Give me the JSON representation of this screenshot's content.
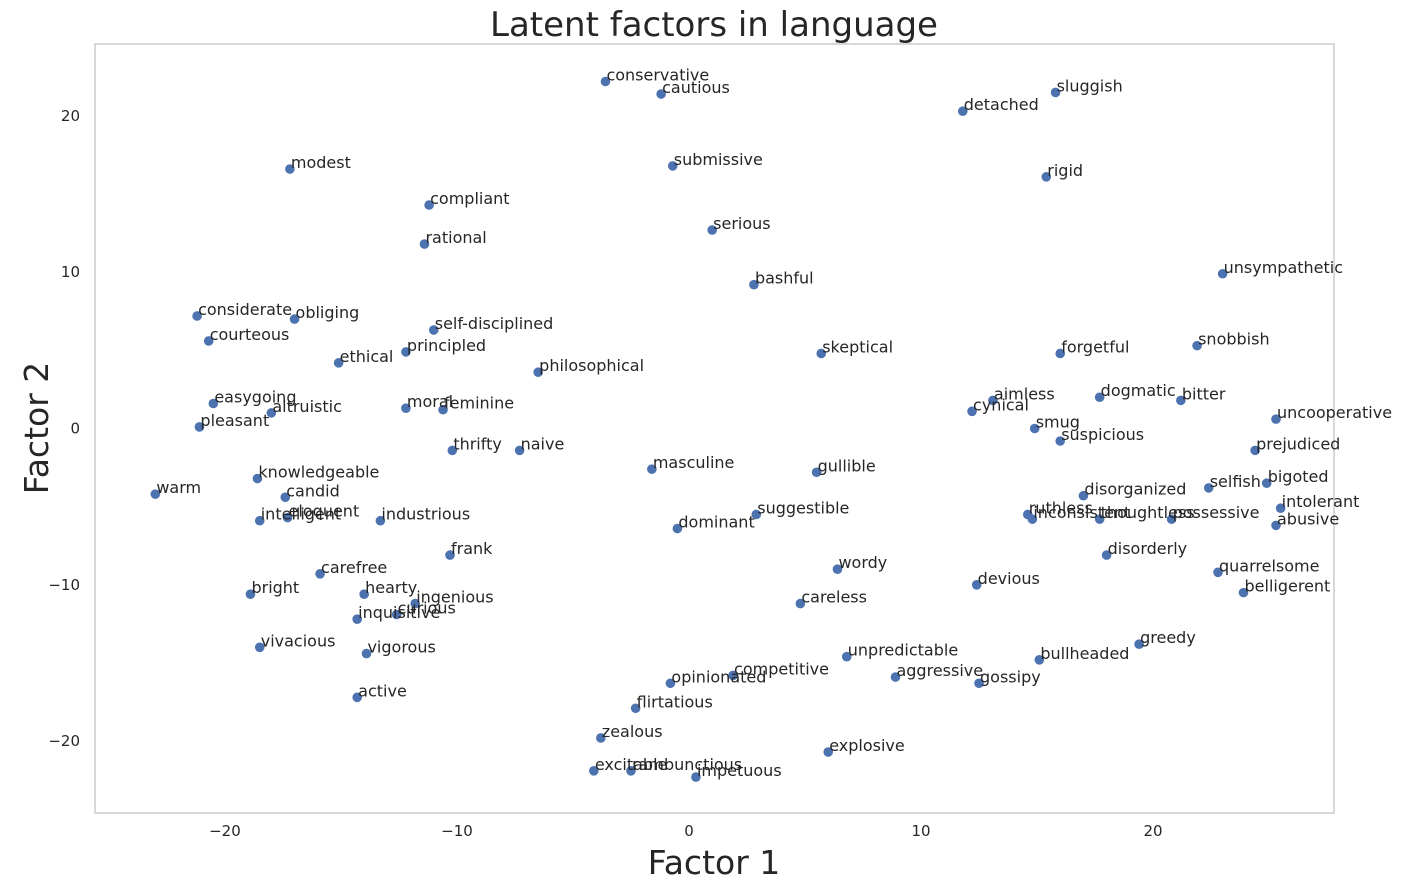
{
  "colors": {
    "point": "#4c72b0",
    "frame": "#cccccc",
    "text": "#262626",
    "background": "#ffffff"
  },
  "chart_data": {
    "type": "scatter",
    "title": "Latent factors in language",
    "xlabel": "Factor 1",
    "ylabel": "Factor 2",
    "xlim": [
      -25.6,
      27.8
    ],
    "ylim": [
      -24.6,
      24.6
    ],
    "xticks": [
      -20,
      -10,
      0,
      10,
      20
    ],
    "yticks": [
      -20,
      -10,
      0,
      10,
      20
    ],
    "xtick_labels": [
      "−20",
      "−10",
      "0",
      "10",
      "20"
    ],
    "ytick_labels": [
      "−20",
      "−10",
      "0",
      "10",
      "20"
    ],
    "grid": false,
    "points": [
      {
        "label": "conservative",
        "x": -3.6,
        "y": 22.2
      },
      {
        "label": "cautious",
        "x": -1.2,
        "y": 21.4
      },
      {
        "label": "sluggish",
        "x": 15.8,
        "y": 21.5
      },
      {
        "label": "detached",
        "x": 11.8,
        "y": 20.3
      },
      {
        "label": "modest",
        "x": -17.2,
        "y": 16.6
      },
      {
        "label": "submissive",
        "x": -0.7,
        "y": 16.8
      },
      {
        "label": "rigid",
        "x": 15.4,
        "y": 16.1
      },
      {
        "label": "compliant",
        "x": -11.2,
        "y": 14.3
      },
      {
        "label": "serious",
        "x": 1.0,
        "y": 12.7
      },
      {
        "label": "rational",
        "x": -11.4,
        "y": 11.8
      },
      {
        "label": "unsympathetic",
        "x": 23.0,
        "y": 9.9
      },
      {
        "label": "bashful",
        "x": 2.8,
        "y": 9.2
      },
      {
        "label": "considerate",
        "x": -21.2,
        "y": 7.2
      },
      {
        "label": "obliging",
        "x": -17.0,
        "y": 7.0
      },
      {
        "label": "self-disciplined",
        "x": -11.0,
        "y": 6.3
      },
      {
        "label": "courteous",
        "x": -20.7,
        "y": 5.6
      },
      {
        "label": "snobbish",
        "x": 21.9,
        "y": 5.3
      },
      {
        "label": "principled",
        "x": -12.2,
        "y": 4.9
      },
      {
        "label": "skeptical",
        "x": 5.7,
        "y": 4.8
      },
      {
        "label": "forgetful",
        "x": 16.0,
        "y": 4.8
      },
      {
        "label": "ethical",
        "x": -15.1,
        "y": 4.2
      },
      {
        "label": "philosophical",
        "x": -6.5,
        "y": 3.6
      },
      {
        "label": "dogmatic",
        "x": 17.7,
        "y": 2.0
      },
      {
        "label": "aimless",
        "x": 13.1,
        "y": 1.8
      },
      {
        "label": "bitter",
        "x": 21.2,
        "y": 1.8
      },
      {
        "label": "easygoing",
        "x": -20.5,
        "y": 1.6
      },
      {
        "label": "moral",
        "x": -12.2,
        "y": 1.3
      },
      {
        "label": "feminine",
        "x": -10.6,
        "y": 1.2
      },
      {
        "label": "altruistic",
        "x": -18.0,
        "y": 1.0
      },
      {
        "label": "cynical",
        "x": 12.2,
        "y": 1.1
      },
      {
        "label": "uncooperative",
        "x": 25.3,
        "y": 0.6
      },
      {
        "label": "smug",
        "x": 14.9,
        "y": 0.0
      },
      {
        "label": "pleasant",
        "x": -21.1,
        "y": 0.1
      },
      {
        "label": "suspicious",
        "x": 16.0,
        "y": -0.8
      },
      {
        "label": "thrifty",
        "x": -10.2,
        "y": -1.4
      },
      {
        "label": "naive",
        "x": -7.3,
        "y": -1.4
      },
      {
        "label": "prejudiced",
        "x": 24.4,
        "y": -1.4
      },
      {
        "label": "masculine",
        "x": -1.6,
        "y": -2.6
      },
      {
        "label": "gullible",
        "x": 5.5,
        "y": -2.8
      },
      {
        "label": "knowledgeable",
        "x": -18.6,
        "y": -3.2
      },
      {
        "label": "bigoted",
        "x": 24.9,
        "y": -3.5
      },
      {
        "label": "selfish",
        "x": 22.4,
        "y": -3.8
      },
      {
        "label": "warm",
        "x": -23.0,
        "y": -4.2
      },
      {
        "label": "disorganized",
        "x": 17.0,
        "y": -4.3
      },
      {
        "label": "candid",
        "x": -17.4,
        "y": -4.4
      },
      {
        "label": "intolerant",
        "x": 25.5,
        "y": -5.1
      },
      {
        "label": "ruthless",
        "x": 14.6,
        "y": -5.5
      },
      {
        "label": "suggestible",
        "x": 2.9,
        "y": -5.5
      },
      {
        "label": "eloquent",
        "x": -17.3,
        "y": -5.7
      },
      {
        "label": "inconsistent",
        "x": 14.8,
        "y": -5.8
      },
      {
        "label": "thoughtless",
        "x": 17.7,
        "y": -5.8
      },
      {
        "label": "possessive",
        "x": 20.8,
        "y": -5.8
      },
      {
        "label": "intelligent",
        "x": -18.5,
        "y": -5.9
      },
      {
        "label": "industrious",
        "x": -13.3,
        "y": -5.9
      },
      {
        "label": "abusive",
        "x": 25.3,
        "y": -6.2
      },
      {
        "label": "dominant",
        "x": -0.5,
        "y": -6.4
      },
      {
        "label": "disorderly",
        "x": 18.0,
        "y": -8.1
      },
      {
        "label": "frank",
        "x": -10.3,
        "y": -8.1
      },
      {
        "label": "wordy",
        "x": 6.4,
        "y": -9.0
      },
      {
        "label": "quarrelsome",
        "x": 22.8,
        "y": -9.2
      },
      {
        "label": "carefree",
        "x": -15.9,
        "y": -9.3
      },
      {
        "label": "devious",
        "x": 12.4,
        "y": -10.0
      },
      {
        "label": "belligerent",
        "x": 23.9,
        "y": -10.5
      },
      {
        "label": "bright",
        "x": -18.9,
        "y": -10.6
      },
      {
        "label": "hearty",
        "x": -14.0,
        "y": -10.6
      },
      {
        "label": "careless",
        "x": 4.8,
        "y": -11.2
      },
      {
        "label": "ingenious",
        "x": -11.8,
        "y": -11.2
      },
      {
        "label": "curious",
        "x": -12.6,
        "y": -11.9
      },
      {
        "label": "inquisitive",
        "x": -14.3,
        "y": -12.2
      },
      {
        "label": "greedy",
        "x": 19.4,
        "y": -13.8
      },
      {
        "label": "vivacious",
        "x": -18.5,
        "y": -14.0
      },
      {
        "label": "vigorous",
        "x": -13.9,
        "y": -14.4
      },
      {
        "label": "unpredictable",
        "x": 6.8,
        "y": -14.6
      },
      {
        "label": "bullheaded",
        "x": 15.1,
        "y": -14.8
      },
      {
        "label": "aggressive",
        "x": 8.9,
        "y": -15.9
      },
      {
        "label": "competitive",
        "x": 1.9,
        "y": -15.8
      },
      {
        "label": "gossipy",
        "x": 12.5,
        "y": -16.3
      },
      {
        "label": "opinionated",
        "x": -0.8,
        "y": -16.3
      },
      {
        "label": "active",
        "x": -14.3,
        "y": -17.2
      },
      {
        "label": "flirtatious",
        "x": -2.3,
        "y": -17.9
      },
      {
        "label": "zealous",
        "x": -3.8,
        "y": -19.8
      },
      {
        "label": "explosive",
        "x": 6.0,
        "y": -20.7
      },
      {
        "label": "excitable",
        "x": -4.1,
        "y": -21.9
      },
      {
        "label": "rambunctious",
        "x": -2.5,
        "y": -21.9
      },
      {
        "label": "impetuous",
        "x": 0.3,
        "y": -22.3
      }
    ]
  }
}
